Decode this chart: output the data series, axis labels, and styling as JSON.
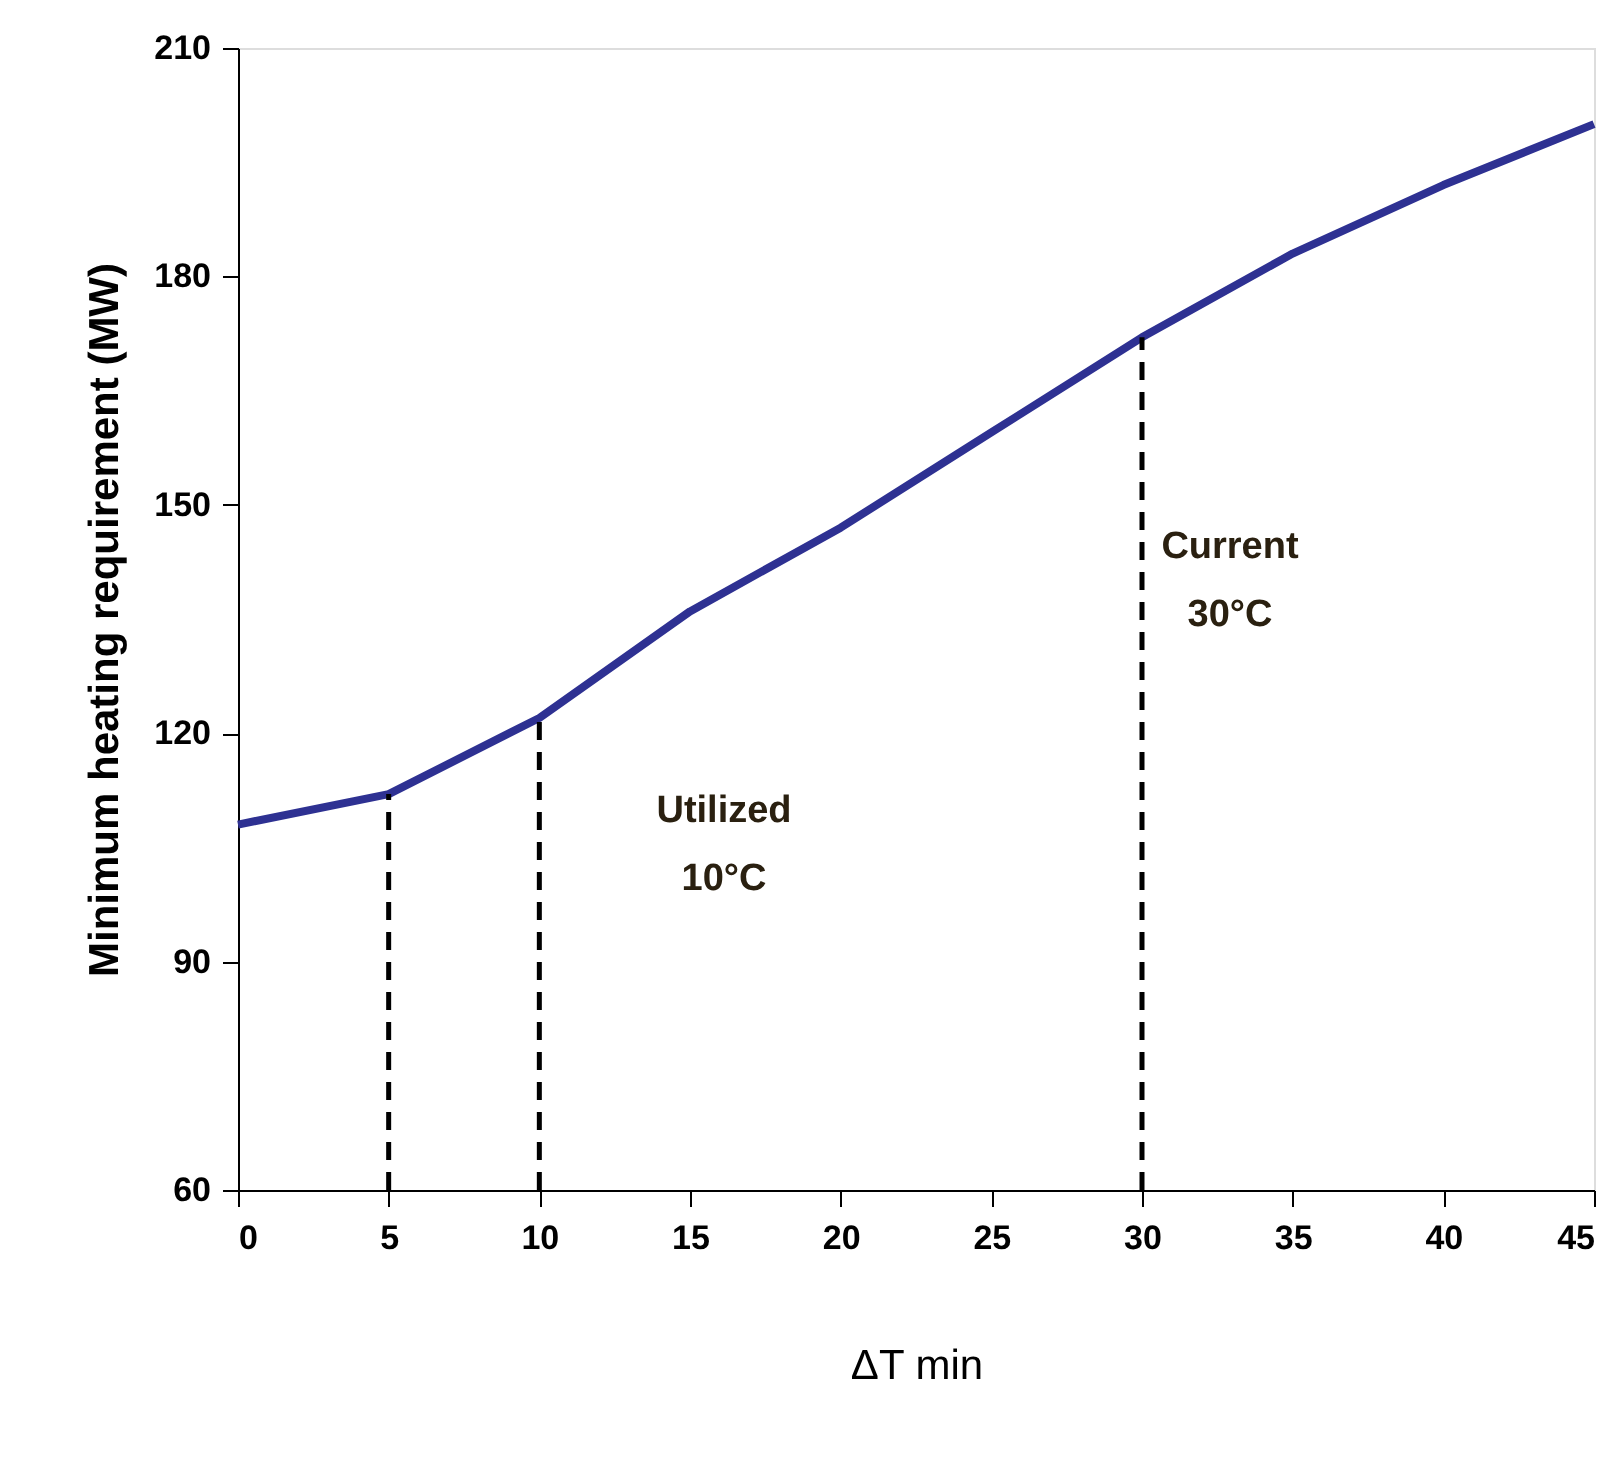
{
  "chart_data": {
    "type": "line",
    "xlabel": "ΔT min",
    "ylabel": "Minimum heating requirement (MW)",
    "x": [
      0,
      5,
      10,
      15,
      20,
      25,
      30,
      35,
      40,
      45
    ],
    "series": [
      {
        "color": "#2e3192",
        "values": [
          108,
          112,
          122,
          136,
          147,
          159.5,
          172,
          183,
          192,
          200
        ]
      }
    ],
    "xlim": [
      0,
      45
    ],
    "xticks": [
      0,
      5,
      10,
      15,
      20,
      25,
      30,
      35,
      40,
      45
    ],
    "ylim": [
      60,
      210
    ],
    "yticks": [
      60,
      90,
      120,
      150,
      180,
      210
    ],
    "ref_lines": [
      {
        "axis": "x",
        "value": 5,
        "label": null,
        "color": "#000000",
        "line_style": "dashed"
      },
      {
        "axis": "x",
        "value": 10,
        "label": null,
        "color": "#000000",
        "line_style": "dashed"
      },
      {
        "axis": "x",
        "value": 30,
        "label": null,
        "color": "#000000",
        "line_style": "dashed"
      }
    ],
    "annotations": [
      "Utilized\n10°C",
      "Current\n30°C"
    ],
    "grid": false,
    "marker": "none",
    "line_style": "solid"
  }
}
